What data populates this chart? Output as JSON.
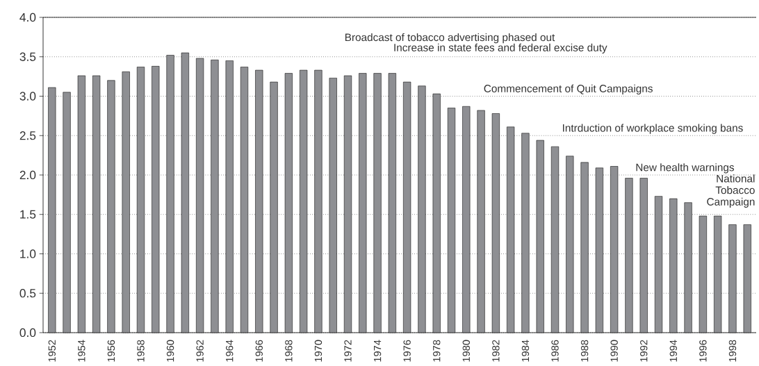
{
  "chart_data": {
    "type": "bar",
    "categories": [
      "1952",
      null,
      "1954",
      null,
      "1956",
      null,
      "1958",
      null,
      "1960",
      null,
      "1962",
      null,
      "1964",
      null,
      "1966",
      null,
      "1968",
      null,
      "1970",
      null,
      "1972",
      null,
      "1974",
      null,
      "1976",
      null,
      "1978",
      null,
      "1980",
      null,
      "1982",
      null,
      "1984",
      null,
      "1986",
      null,
      "1988",
      null,
      "1990",
      null,
      "1992",
      null,
      "1994",
      null,
      "1996",
      null,
      "1998",
      null
    ],
    "values": [
      3.11,
      3.05,
      3.26,
      3.26,
      3.2,
      3.31,
      3.37,
      3.38,
      3.52,
      3.55,
      3.48,
      3.46,
      3.45,
      3.37,
      3.33,
      3.18,
      3.29,
      3.33,
      3.33,
      3.23,
      3.26,
      3.29,
      3.29,
      3.29,
      3.18,
      3.13,
      3.03,
      2.85,
      2.87,
      2.82,
      2.78,
      2.61,
      2.53,
      2.44,
      2.36,
      2.24,
      2.16,
      2.09,
      2.11,
      1.96,
      1.96,
      1.73,
      1.7,
      1.65,
      1.48,
      1.48,
      1.37,
      1.37
    ],
    "color": "#8e8f93",
    "ylim": [
      0,
      4
    ],
    "yticks": [
      {
        "value": 0,
        "label": "0.0"
      },
      {
        "value": 0.5,
        "label": "0.5"
      },
      {
        "value": 1,
        "label": "1.0"
      },
      {
        "value": 1.5,
        "label": "1.5"
      },
      {
        "value": 2,
        "label": "2.0"
      },
      {
        "value": 2.5,
        "label": "2.5"
      },
      {
        "value": 3,
        "label": "3.0"
      },
      {
        "value": 3.5,
        "label": "3.5"
      },
      {
        "value": 4,
        "label": "4.0"
      }
    ],
    "grid": "y",
    "annotations": [
      "Broadcast of tobacco advertising phased out",
      "Increase in state fees and federal excise duty",
      "Commencement of Quit Campaigns",
      "Intrduction of workplace smoking bans",
      "New health warnings",
      "National Tobacco Campaign"
    ]
  }
}
